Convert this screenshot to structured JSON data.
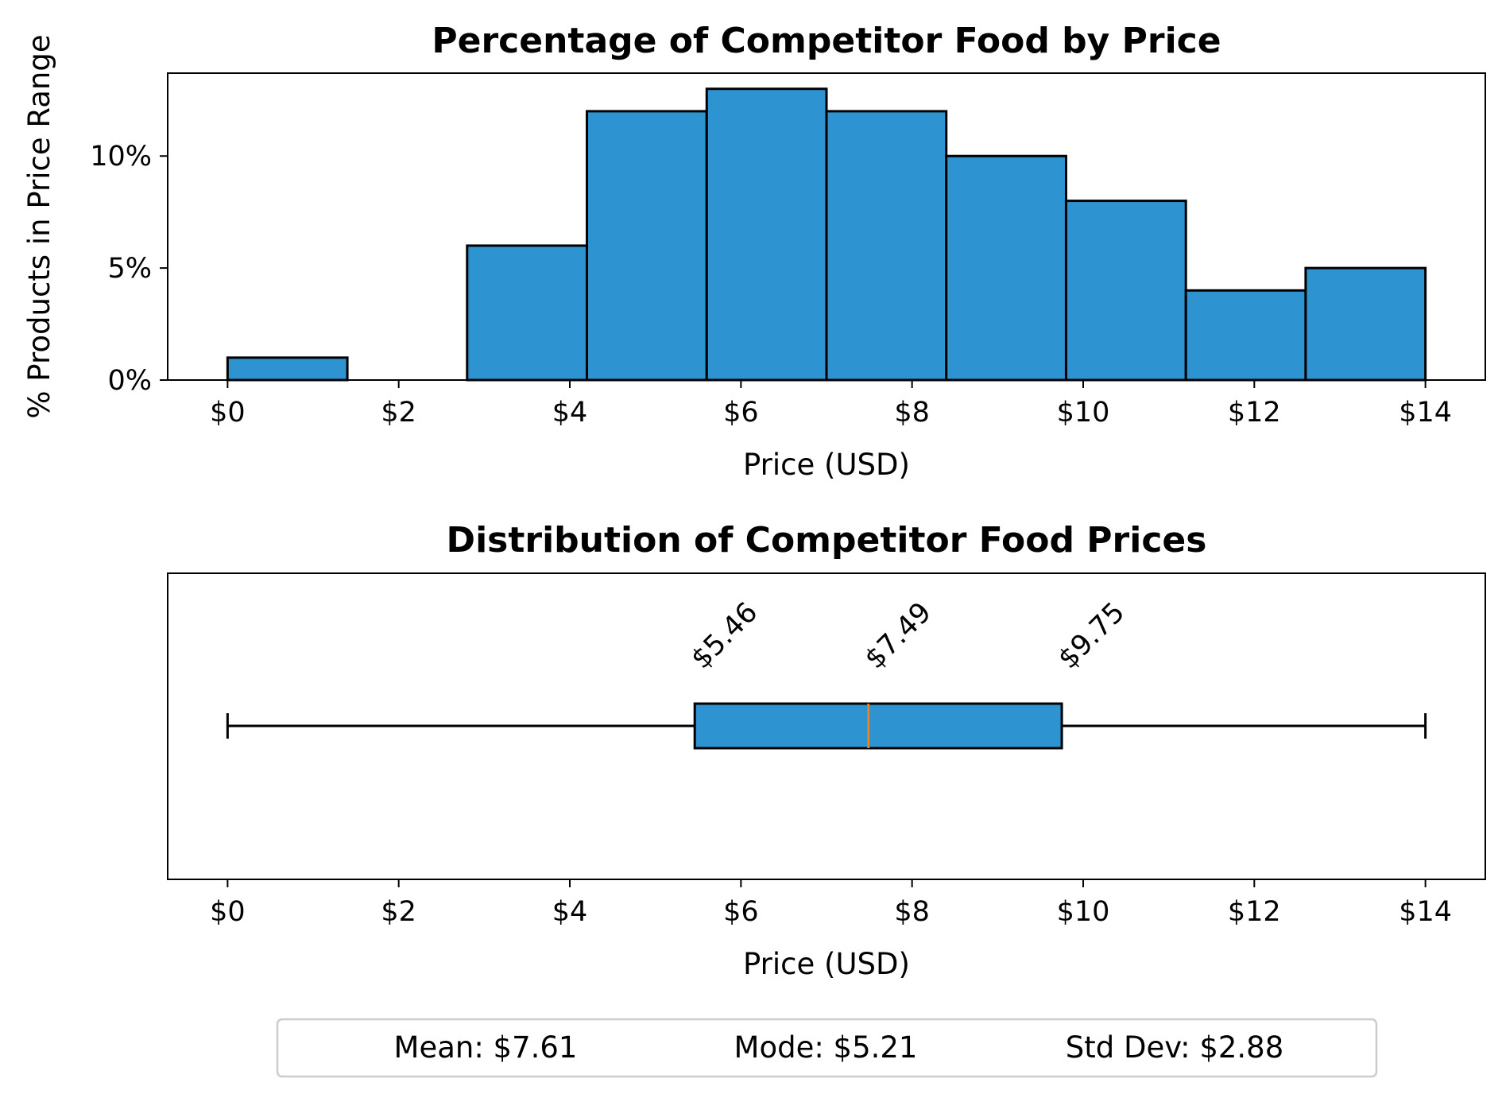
{
  "chart_data": [
    {
      "type": "bar",
      "title": "Percentage of Competitor Food by Price",
      "xlabel": "Price (USD)",
      "ylabel": "% Products in Price Range",
      "bin_edges": [
        0,
        1.4,
        2.8,
        4.2,
        5.6,
        7.0,
        8.4,
        9.8,
        11.2,
        12.6,
        14.0
      ],
      "values": [
        1,
        0,
        6,
        12,
        13,
        12,
        10,
        8,
        4,
        5
      ],
      "xlim": [
        -0.7,
        14.7
      ],
      "ylim": [
        0,
        13.7
      ],
      "xticks": [
        0,
        2,
        4,
        6,
        8,
        10,
        12,
        14
      ],
      "xtick_labels": [
        "$0",
        "$2",
        "$4",
        "$6",
        "$8",
        "$10",
        "$12",
        "$14"
      ],
      "yticks": [
        0,
        5,
        10
      ],
      "ytick_labels": [
        "0%",
        "5%",
        "10%"
      ],
      "color": "#2e94d1",
      "grid": false
    },
    {
      "type": "box",
      "title": "Distribution of Competitor Food Prices",
      "xlabel": "Price (USD)",
      "whisker_low": 0,
      "q1": 5.46,
      "median": 7.49,
      "q3": 9.75,
      "whisker_high": 14,
      "annotations": [
        "$5.46",
        "$7.49",
        "$9.75"
      ],
      "xlim": [
        -0.7,
        14.7
      ],
      "xticks": [
        0,
        2,
        4,
        6,
        8,
        10,
        12,
        14
      ],
      "xtick_labels": [
        "$0",
        "$2",
        "$4",
        "$6",
        "$8",
        "$10",
        "$12",
        "$14"
      ],
      "box_color": "#2e94d1",
      "median_color": "#e8802a",
      "grid": false
    }
  ],
  "legend": {
    "placement": "bottom-center",
    "items": [
      "Mean: $7.61",
      "Mode: $5.21",
      "Std Dev: $2.88"
    ]
  }
}
